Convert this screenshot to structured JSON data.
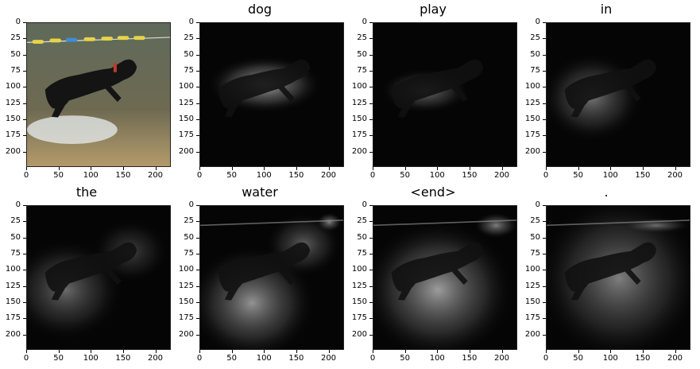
{
  "panels": [
    {
      "title": "",
      "type": "photo"
    },
    {
      "title": "dog",
      "type": "attention"
    },
    {
      "title": "play",
      "type": "attention"
    },
    {
      "title": "in",
      "type": "attention"
    },
    {
      "title": "the",
      "type": "attention"
    },
    {
      "title": "water",
      "type": "attention"
    },
    {
      "title": "<end>",
      "type": "attention"
    },
    {
      "title": ".",
      "type": "attention"
    }
  ],
  "y_ticks": [
    "0",
    "25",
    "50",
    "75",
    "100",
    "125",
    "150",
    "175",
    "200"
  ],
  "x_ticks": [
    "0",
    "50",
    "100",
    "150",
    "200"
  ],
  "colors": {
    "water": "#6e6a52",
    "sand": "#b59a6a",
    "dog": "#141414",
    "buoy_yellow": "#e5d34a",
    "buoy_blue": "#3d8fd6",
    "collar": "#c0392b"
  }
}
